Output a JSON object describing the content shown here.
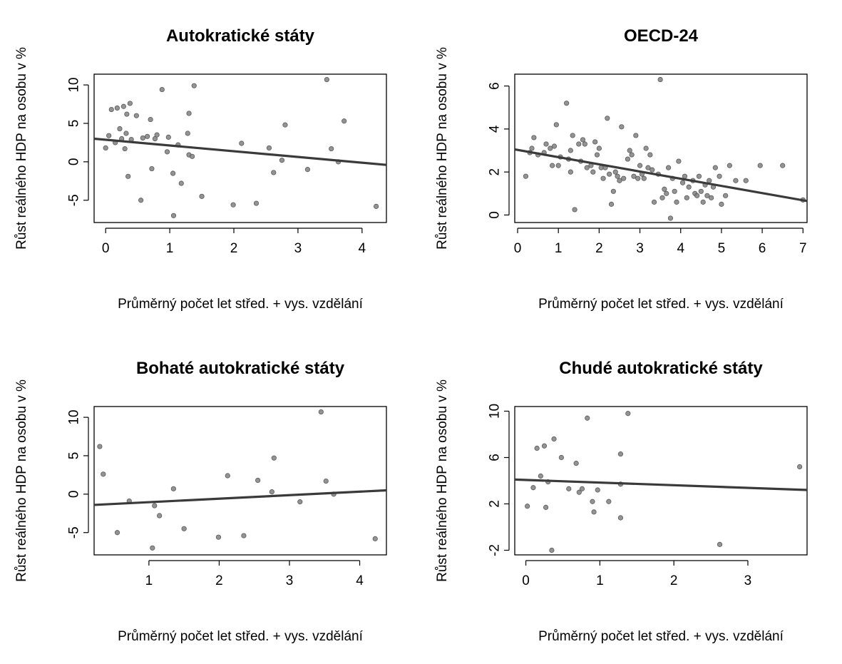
{
  "chart_data": [
    {
      "type": "scatter",
      "title": "Autokratické státy",
      "xlabel": "Průměrný počet let střed. + vys. vzdělání",
      "ylabel": "Růst reálného HDP na osobu v %",
      "xlim": [
        -0.18,
        4.38
      ],
      "ylim": [
        -7.9,
        11.4
      ],
      "xticks": [
        0,
        1,
        2,
        3,
        4
      ],
      "yticks": [
        -5,
        0,
        5,
        10
      ],
      "grid": false,
      "point_color": "#808080",
      "line_color": "#3a3a3a",
      "trend": {
        "x": [
          -0.18,
          4.38
        ],
        "y": [
          3.0,
          -0.4
        ]
      },
      "points": [
        [
          0.0,
          1.8
        ],
        [
          0.05,
          3.4
        ],
        [
          0.09,
          6.8
        ],
        [
          0.15,
          2.5
        ],
        [
          0.18,
          7.0
        ],
        [
          0.22,
          4.3
        ],
        [
          0.25,
          3.0
        ],
        [
          0.28,
          7.2
        ],
        [
          0.3,
          1.7
        ],
        [
          0.32,
          3.7
        ],
        [
          0.33,
          6.2
        ],
        [
          0.35,
          -1.9
        ],
        [
          0.38,
          7.6
        ],
        [
          0.4,
          2.9
        ],
        [
          0.48,
          6.0
        ],
        [
          0.55,
          -5.0
        ],
        [
          0.58,
          3.1
        ],
        [
          0.65,
          3.3
        ],
        [
          0.7,
          5.5
        ],
        [
          0.72,
          -0.9
        ],
        [
          0.77,
          3.0
        ],
        [
          0.8,
          3.5
        ],
        [
          0.88,
          9.4
        ],
        [
          0.96,
          1.3
        ],
        [
          0.98,
          3.2
        ],
        [
          1.05,
          -1.5
        ],
        [
          1.06,
          -7.0
        ],
        [
          1.13,
          2.2
        ],
        [
          1.18,
          -2.8
        ],
        [
          1.28,
          3.7
        ],
        [
          1.3,
          6.3
        ],
        [
          1.3,
          0.9
        ],
        [
          1.35,
          0.7
        ],
        [
          1.38,
          9.9
        ],
        [
          1.5,
          -4.5
        ],
        [
          1.99,
          -5.6
        ],
        [
          2.12,
          2.4
        ],
        [
          2.35,
          -5.4
        ],
        [
          2.55,
          1.8
        ],
        [
          2.62,
          -1.4
        ],
        [
          2.75,
          0.2
        ],
        [
          2.8,
          4.8
        ],
        [
          3.15,
          -1.0
        ],
        [
          3.45,
          10.7
        ],
        [
          3.52,
          1.7
        ],
        [
          3.63,
          0.0
        ],
        [
          3.72,
          5.3
        ],
        [
          4.22,
          -5.8
        ]
      ]
    },
    {
      "type": "scatter",
      "title": "OECD-24",
      "xlabel": "Průměrný počet let střed. + vys. vzdělání",
      "ylabel": "Růst reálného HDP na osobu v %",
      "xlim": [
        -0.07,
        7.1
      ],
      "ylim": [
        -0.35,
        6.55
      ],
      "xticks": [
        0,
        1,
        2,
        3,
        4,
        5,
        6,
        7
      ],
      "yticks": [
        0,
        2,
        4,
        6
      ],
      "grid": false,
      "point_color": "#808080",
      "line_color": "#3a3a3a",
      "trend": {
        "x": [
          -0.07,
          7.1
        ],
        "y": [
          3.05,
          0.65
        ]
      },
      "points": [
        [
          0.2,
          1.8
        ],
        [
          0.3,
          2.9
        ],
        [
          0.35,
          3.1
        ],
        [
          0.4,
          3.6
        ],
        [
          0.5,
          2.8
        ],
        [
          0.65,
          2.9
        ],
        [
          0.7,
          3.3
        ],
        [
          0.8,
          3.1
        ],
        [
          0.85,
          2.3
        ],
        [
          0.9,
          3.2
        ],
        [
          0.95,
          4.2
        ],
        [
          1.0,
          2.3
        ],
        [
          1.05,
          2.7
        ],
        [
          1.2,
          5.2
        ],
        [
          1.25,
          2.6
        ],
        [
          1.3,
          3.0
        ],
        [
          1.3,
          2.0
        ],
        [
          1.35,
          3.7
        ],
        [
          1.4,
          0.25
        ],
        [
          1.5,
          3.3
        ],
        [
          1.55,
          2.5
        ],
        [
          1.6,
          3.5
        ],
        [
          1.65,
          3.3
        ],
        [
          1.7,
          2.2
        ],
        [
          1.8,
          2.3
        ],
        [
          1.85,
          2.0
        ],
        [
          1.9,
          3.4
        ],
        [
          1.95,
          2.8
        ],
        [
          2.0,
          3.1
        ],
        [
          2.05,
          2.2
        ],
        [
          2.1,
          1.7
        ],
        [
          2.15,
          2.2
        ],
        [
          2.2,
          4.5
        ],
        [
          2.25,
          1.9
        ],
        [
          2.3,
          0.5
        ],
        [
          2.35,
          1.1
        ],
        [
          2.4,
          2.0
        ],
        [
          2.45,
          1.8
        ],
        [
          2.5,
          1.6
        ],
        [
          2.55,
          4.1
        ],
        [
          2.6,
          1.7
        ],
        [
          2.7,
          2.6
        ],
        [
          2.75,
          3.0
        ],
        [
          2.8,
          2.8
        ],
        [
          2.85,
          1.8
        ],
        [
          2.9,
          3.7
        ],
        [
          2.95,
          1.7
        ],
        [
          3.0,
          2.3
        ],
        [
          3.05,
          1.9
        ],
        [
          3.1,
          1.7
        ],
        [
          3.15,
          3.1
        ],
        [
          3.2,
          2.2
        ],
        [
          3.25,
          2.8
        ],
        [
          3.3,
          2.1
        ],
        [
          3.35,
          0.6
        ],
        [
          3.45,
          1.9
        ],
        [
          3.5,
          6.3
        ],
        [
          3.55,
          0.8
        ],
        [
          3.6,
          1.2
        ],
        [
          3.65,
          1.0
        ],
        [
          3.7,
          2.2
        ],
        [
          3.75,
          -0.15
        ],
        [
          3.8,
          1.7
        ],
        [
          3.85,
          1.1
        ],
        [
          3.9,
          0.6
        ],
        [
          3.95,
          2.5
        ],
        [
          4.05,
          1.5
        ],
        [
          4.1,
          1.8
        ],
        [
          4.15,
          0.8
        ],
        [
          4.2,
          1.3
        ],
        [
          4.3,
          1.6
        ],
        [
          4.35,
          1.0
        ],
        [
          4.4,
          0.9
        ],
        [
          4.45,
          1.8
        ],
        [
          4.5,
          1.1
        ],
        [
          4.55,
          0.6
        ],
        [
          4.6,
          1.4
        ],
        [
          4.65,
          0.9
        ],
        [
          4.7,
          1.6
        ],
        [
          4.75,
          0.8
        ],
        [
          4.8,
          1.3
        ],
        [
          4.85,
          2.2
        ],
        [
          4.95,
          1.8
        ],
        [
          5.0,
          0.5
        ],
        [
          5.1,
          0.9
        ],
        [
          5.2,
          2.3
        ],
        [
          5.35,
          1.6
        ],
        [
          5.6,
          1.6
        ],
        [
          5.95,
          2.3
        ],
        [
          6.5,
          2.3
        ],
        [
          7.0,
          0.7
        ]
      ]
    },
    {
      "type": "scatter",
      "title": "Bohaté autokratické státy",
      "xlabel": "Průměrný počet let střed. + vys. vzdělání",
      "ylabel": "Růst reálného HDP na osobu v %",
      "xlim": [
        0.22,
        4.38
      ],
      "ylim": [
        -7.9,
        11.4
      ],
      "xticks": [
        1,
        2,
        3,
        4
      ],
      "yticks": [
        -5,
        0,
        5,
        10
      ],
      "grid": false,
      "point_color": "#808080",
      "line_color": "#3a3a3a",
      "trend": {
        "x": [
          0.22,
          4.38
        ],
        "y": [
          -1.4,
          0.5
        ]
      },
      "points": [
        [
          0.3,
          6.2
        ],
        [
          0.35,
          2.6
        ],
        [
          0.55,
          -5.0
        ],
        [
          0.72,
          -0.9
        ],
        [
          1.05,
          -7.0
        ],
        [
          1.08,
          -1.5
        ],
        [
          1.15,
          -2.8
        ],
        [
          1.35,
          0.7
        ],
        [
          1.5,
          -4.5
        ],
        [
          1.99,
          -5.6
        ],
        [
          2.12,
          2.4
        ],
        [
          2.35,
          -5.4
        ],
        [
          2.55,
          1.8
        ],
        [
          2.75,
          0.3
        ],
        [
          2.78,
          4.7
        ],
        [
          3.15,
          -1.0
        ],
        [
          3.45,
          10.7
        ],
        [
          3.52,
          1.7
        ],
        [
          3.63,
          0.0
        ],
        [
          4.22,
          -5.8
        ]
      ]
    },
    {
      "type": "scatter",
      "title": "Chudé autokratické státy",
      "xlabel": "Průměrný počet let střed. + vys. vzdělání",
      "ylabel": "Růst reálného HDP na osobu v %",
      "xlim": [
        -0.15,
        3.8
      ],
      "ylim": [
        -2.4,
        10.4
      ],
      "xticks": [
        0,
        1,
        2,
        3
      ],
      "yticks": [
        -2,
        2,
        6,
        10
      ],
      "grid": false,
      "point_color": "#808080",
      "line_color": "#3a3a3a",
      "trend": {
        "x": [
          -0.15,
          3.8
        ],
        "y": [
          4.1,
          3.2
        ]
      },
      "points": [
        [
          0.02,
          1.8
        ],
        [
          0.1,
          3.4
        ],
        [
          0.15,
          6.8
        ],
        [
          0.2,
          4.4
        ],
        [
          0.25,
          7.0
        ],
        [
          0.27,
          1.7
        ],
        [
          0.3,
          3.9
        ],
        [
          0.35,
          -2.0
        ],
        [
          0.38,
          7.6
        ],
        [
          0.48,
          6.0
        ],
        [
          0.58,
          3.3
        ],
        [
          0.68,
          5.5
        ],
        [
          0.72,
          3.0
        ],
        [
          0.76,
          3.3
        ],
        [
          0.83,
          9.4
        ],
        [
          0.9,
          2.2
        ],
        [
          0.92,
          1.3
        ],
        [
          0.97,
          3.2
        ],
        [
          1.12,
          2.2
        ],
        [
          1.28,
          3.7
        ],
        [
          1.28,
          6.3
        ],
        [
          1.28,
          0.8
        ],
        [
          1.38,
          9.8
        ],
        [
          2.62,
          -1.5
        ],
        [
          3.7,
          5.2
        ]
      ]
    }
  ]
}
